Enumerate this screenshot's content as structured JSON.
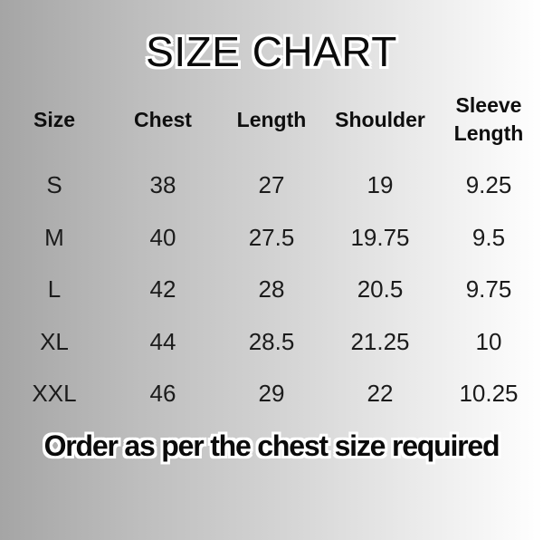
{
  "title": "SIZE CHART",
  "table": {
    "columns": [
      "Size",
      "Chest",
      "Length",
      "Shoulder",
      "Sleeve Length"
    ],
    "rows": [
      [
        "S",
        "38",
        "27",
        "19",
        "9.25"
      ],
      [
        "M",
        "40",
        "27.5",
        "19.75",
        "9.5"
      ],
      [
        "L",
        "42",
        "28",
        "20.5",
        "9.75"
      ],
      [
        "XL",
        "44",
        "28.5",
        "21.25",
        "10"
      ],
      [
        "XXL",
        "46",
        "29",
        "22",
        "10.25"
      ]
    ]
  },
  "footer": "Order as per the chest size required",
  "colors": {
    "text": "#111111",
    "background_left": "#a5a5a5",
    "background_right": "#ffffff",
    "text_outline": "#ffffff"
  }
}
